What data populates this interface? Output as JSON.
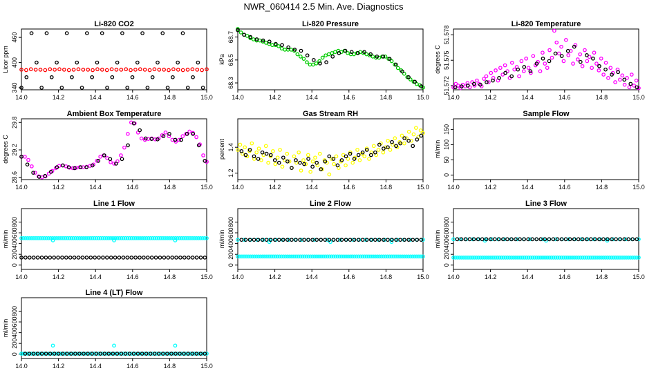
{
  "title": "NWR_060414  2.5 Min. Ave. Diagnostics",
  "colors": {
    "red": "#ff0000",
    "green": "#00cc00",
    "magenta": "#ff00ff",
    "yellow": "#ffff00",
    "cyan": "#00ffff",
    "black": "#000000"
  },
  "chart_data": [
    {
      "type": "scatter",
      "title": "Li-820 CO2",
      "ylabel": "Licor ppm",
      "xlim": [
        14.0,
        15.0
      ],
      "ylim": [
        335,
        480
      ],
      "x_ticks": [
        "14.0",
        "14.2",
        "14.4",
        "14.6",
        "14.8",
        "15.0"
      ],
      "y_ticks": [
        "340",
        "400",
        "460"
      ],
      "series": [
        {
          "name": "red",
          "color": "#ff0000",
          "x_start": 14.0,
          "x_end": 15.0,
          "values": [
            383,
            382,
            384,
            383,
            383,
            382,
            384,
            383,
            384,
            383,
            382,
            383,
            384,
            383,
            383,
            382,
            384,
            383,
            382,
            384,
            383,
            383,
            384,
            382,
            383,
            384,
            383,
            382,
            384,
            383,
            383,
            382,
            384,
            383,
            382,
            383,
            384,
            383,
            382,
            384
          ]
        },
        {
          "name": "black",
          "color": "#000000",
          "x_start": 14.0,
          "x_end": 14.98,
          "values": [
            340,
            365,
            470,
            400,
            340,
            470,
            365,
            400,
            340,
            470,
            365,
            400,
            340,
            470,
            365,
            400,
            470,
            340,
            365,
            400,
            470,
            340,
            365,
            400,
            470,
            340,
            365,
            400,
            470,
            340,
            365,
            400,
            470,
            340,
            365,
            400,
            340
          ]
        }
      ]
    },
    {
      "type": "scatter",
      "title": "Li-820 Pressure",
      "ylabel": "kPa",
      "xlim": [
        14.0,
        15.0
      ],
      "ylim": [
        68.24,
        68.77
      ],
      "x_ticks": [
        "14.0",
        "14.2",
        "14.4",
        "14.6",
        "14.8",
        "15.0"
      ],
      "y_ticks": [
        "68.3",
        "68.5",
        "68.7"
      ],
      "series": [
        {
          "name": "green",
          "color": "#00cc00",
          "x_start": 14.0,
          "x_end": 15.0,
          "values": [
            68.77,
            68.74,
            68.72,
            68.71,
            68.69,
            68.68,
            68.67,
            68.67,
            68.66,
            68.65,
            68.64,
            68.63,
            68.63,
            68.62,
            68.6,
            68.59,
            68.59,
            68.59,
            68.58,
            68.55,
            68.53,
            68.51,
            68.48,
            68.46,
            68.46,
            68.47,
            68.49,
            68.52,
            68.54,
            68.55,
            68.56,
            68.57,
            68.58,
            68.57,
            68.58,
            68.56,
            68.55,
            68.55,
            68.56,
            68.57,
            68.56,
            68.55,
            68.54,
            68.53,
            68.52,
            68.52,
            68.53,
            68.53,
            68.51,
            68.49,
            68.46,
            68.43,
            68.41,
            68.38,
            68.35,
            68.33,
            68.31,
            68.29,
            68.28,
            68.26
          ]
        },
        {
          "name": "black",
          "color": "#000000",
          "x_start": 14.0,
          "x_end": 14.99,
          "values": [
            68.76,
            68.72,
            68.7,
            68.68,
            68.67,
            68.66,
            68.64,
            68.63,
            68.61,
            68.59,
            68.58,
            68.54,
            68.5,
            68.47,
            68.48,
            68.53,
            68.56,
            68.58,
            68.57,
            68.56,
            68.57,
            68.55,
            68.53,
            68.53,
            68.51,
            68.46,
            68.4,
            68.35,
            68.31,
            68.27
          ]
        }
      ]
    },
    {
      "type": "scatter",
      "title": "Li-820 Temperature",
      "ylabel": "degrees C",
      "xlim": [
        14.0,
        15.0
      ],
      "ylim": [
        51.5715,
        51.5787
      ],
      "x_ticks": [
        "14.0",
        "14.2",
        "14.4",
        "14.6",
        "14.8",
        "15.0"
      ],
      "y_ticks": [
        "51.572",
        "51.575",
        "51.578"
      ],
      "series": [
        {
          "name": "magenta",
          "color": "#ff00ff",
          "x_start": 14.0,
          "x_end": 15.0,
          "values": [
            51.5718,
            51.5722,
            51.572,
            51.5717,
            51.5721,
            51.5719,
            51.5723,
            51.5718,
            51.5724,
            51.572,
            51.5726,
            51.5722,
            51.5719,
            51.5728,
            51.5731,
            51.5724,
            51.5735,
            51.5729,
            51.5738,
            51.5726,
            51.5741,
            51.5733,
            51.5744,
            51.5737,
            51.5729,
            51.5747,
            51.5739,
            51.5742,
            51.5731,
            51.5749,
            51.5737,
            51.5752,
            51.5741,
            51.5735,
            51.5755,
            51.5744,
            51.5748,
            51.5737,
            51.5759,
            51.5746,
            51.5741,
            51.5762,
            51.5753,
            51.5785,
            51.5771,
            51.5758,
            51.5766,
            51.5749,
            51.5774,
            51.5756,
            51.5761,
            51.5746,
            51.5768,
            51.5751,
            51.5757,
            51.5743,
            51.5762,
            51.5749,
            51.5754,
            51.5741,
            51.5759,
            51.5746,
            51.5738,
            51.5752,
            51.5733,
            51.5747,
            51.5729,
            51.5741,
            51.5735,
            51.5724,
            51.5739,
            51.5727,
            51.5732,
            51.5721,
            51.5729,
            51.5718,
            51.5733,
            51.572,
            51.5726,
            51.5717
          ]
        },
        {
          "name": "black",
          "color": "#000000",
          "x_start": 14.01,
          "x_end": 14.99,
          "values": [
            51.5718,
            51.5719,
            51.572,
            51.5722,
            51.5721,
            51.5724,
            51.5726,
            51.5729,
            51.5735,
            51.5731,
            51.5739,
            51.5742,
            51.5737,
            51.5746,
            51.5752,
            51.5749,
            51.5758,
            51.5755,
            51.5761,
            51.5766,
            51.5748,
            51.5756,
            51.5752,
            51.5743,
            51.5739,
            51.5733,
            51.5736,
            51.5727,
            51.5722,
            51.5718
          ]
        }
      ]
    },
    {
      "type": "scatter",
      "title": "Ambient Box Temperature",
      "ylabel": "degrees C",
      "xlim": [
        14.0,
        15.0
      ],
      "ylim": [
        28.55,
        29.88
      ],
      "x_ticks": [
        "14.0",
        "14.2",
        "14.4",
        "14.6",
        "14.8",
        "15.0"
      ],
      "y_ticks": [
        "28.6",
        "29.2",
        "29.8"
      ],
      "series": [
        {
          "name": "magenta",
          "color": "#ff00ff",
          "x_start": 14.0,
          "x_end": 15.0,
          "values": [
            29.05,
            29.05,
            28.98,
            28.84,
            28.7,
            28.62,
            28.6,
            28.62,
            28.68,
            28.74,
            28.8,
            28.85,
            28.86,
            28.84,
            28.81,
            28.8,
            28.81,
            28.82,
            28.82,
            28.83,
            28.85,
            28.88,
            28.96,
            29.05,
            29.08,
            29.02,
            28.93,
            28.9,
            28.95,
            29.08,
            29.25,
            29.55,
            29.8,
            29.78,
            29.58,
            29.45,
            29.42,
            29.44,
            29.45,
            29.43,
            29.45,
            29.52,
            29.58,
            29.5,
            29.42,
            29.38,
            29.42,
            29.5,
            29.55,
            29.6,
            29.57,
            29.48,
            29.32,
            29.08,
            28.94
          ]
        },
        {
          "name": "black",
          "color": "#000000",
          "x_start": 14.0,
          "x_end": 14.99,
          "values": [
            29.05,
            28.88,
            28.7,
            28.61,
            28.63,
            28.72,
            28.82,
            28.86,
            28.82,
            28.8,
            28.82,
            28.82,
            28.86,
            28.96,
            29.08,
            29.0,
            28.9,
            29.0,
            29.3,
            29.78,
            29.63,
            29.45,
            29.44,
            29.43,
            29.5,
            29.55,
            29.42,
            29.42,
            29.55,
            29.55,
            29.3,
            28.96
          ]
        }
      ]
    },
    {
      "type": "scatter",
      "title": "Gas Stream RH",
      "ylabel": "percent",
      "xlim": [
        14.0,
        15.0
      ],
      "ylim": [
        1.15,
        1.62
      ],
      "x_ticks": [
        "14.0",
        "14.2",
        "14.4",
        "14.6",
        "14.8",
        "15.0"
      ],
      "y_ticks": [
        "1.2",
        "1.4"
      ],
      "series": [
        {
          "name": "yellow",
          "color": "#ffff00",
          "x_start": 14.0,
          "x_end": 15.0,
          "values": [
            1.38,
            1.42,
            1.35,
            1.4,
            1.33,
            1.37,
            1.43,
            1.31,
            1.36,
            1.39,
            1.3,
            1.34,
            1.41,
            1.28,
            1.33,
            1.37,
            1.27,
            1.32,
            1.38,
            1.25,
            1.3,
            1.35,
            1.29,
            1.24,
            1.33,
            1.28,
            1.36,
            1.22,
            1.3,
            1.27,
            1.34,
            1.21,
            1.29,
            1.32,
            1.26,
            1.35,
            1.23,
            1.3,
            1.28,
            1.19,
            1.31,
            1.27,
            1.33,
            1.24,
            1.29,
            1.34,
            1.26,
            1.31,
            1.36,
            1.28,
            1.32,
            1.38,
            1.3,
            1.35,
            1.33,
            1.39,
            1.31,
            1.36,
            1.41,
            1.34,
            1.38,
            1.43,
            1.36,
            1.4,
            1.45,
            1.38,
            1.42,
            1.47,
            1.4,
            1.44,
            1.49,
            1.43,
            1.47,
            1.52,
            1.45,
            1.5,
            1.55,
            1.48,
            1.53,
            1.51
          ]
        },
        {
          "name": "black",
          "color": "#000000",
          "x_start": 14.02,
          "x_end": 14.99,
          "values": [
            1.37,
            1.34,
            1.38,
            1.33,
            1.31,
            1.36,
            1.35,
            1.34,
            1.3,
            1.28,
            1.32,
            1.29,
            1.24,
            1.3,
            1.28,
            1.27,
            1.31,
            1.25,
            1.28,
            1.23,
            1.29,
            1.33,
            1.31,
            1.26,
            1.3,
            1.33,
            1.35,
            1.31,
            1.34,
            1.36,
            1.38,
            1.34,
            1.36,
            1.42,
            1.39,
            1.4,
            1.44,
            1.41,
            1.43,
            1.47,
            1.45,
            1.41,
            1.46,
            1.49
          ]
        }
      ]
    },
    {
      "type": "scatter",
      "title": "Sample Flow",
      "ylabel": "ml/min",
      "xlim": [
        14.0,
        15.0
      ],
      "ylim": [
        -15,
        185
      ],
      "x_ticks": [
        "14.0",
        "14.2",
        "14.4",
        "14.6",
        "14.8",
        "15.0"
      ],
      "y_ticks": [
        "0",
        "50",
        "100",
        "150"
      ],
      "series": []
    },
    {
      "type": "scatter",
      "title": "Line 1 Flow",
      "ylabel": "ml/min",
      "xlim": [
        14.0,
        15.0
      ],
      "ylim": [
        -80,
        1050
      ],
      "x_ticks": [
        "14.0",
        "14.2",
        "14.4",
        "14.6",
        "14.8",
        "15.0"
      ],
      "y_ticks": [
        "0",
        "200",
        "400",
        "600",
        "800"
      ],
      "series": [
        {
          "name": "cyan-high",
          "color": "#00ffff",
          "x_start": 14.0,
          "x_end": 15.0,
          "constant": 500,
          "count": 90
        },
        {
          "name": "cyan-dips",
          "color": "#00ffff",
          "x": [
            14.17,
            14.5,
            14.83
          ],
          "values": [
            460,
            460,
            460
          ]
        },
        {
          "name": "black",
          "color": "#000000",
          "x_start": 14.0,
          "x_end": 14.99,
          "constant": 140,
          "count": 46
        }
      ]
    },
    {
      "type": "scatter",
      "title": "Line 2 Flow",
      "ylabel": "ml/min",
      "xlim": [
        14.0,
        15.0
      ],
      "ylim": [
        -80,
        1050
      ],
      "x_ticks": [
        "14.0",
        "14.2",
        "14.4",
        "14.6",
        "14.8",
        "15.0"
      ],
      "y_ticks": [
        "0",
        "200",
        "400",
        "600",
        "800"
      ],
      "series": [
        {
          "name": "cyan-low",
          "color": "#00ffff",
          "x_start": 14.0,
          "x_end": 15.0,
          "constant": 160,
          "count": 90
        },
        {
          "name": "cyan-high",
          "color": "#00ffff",
          "x_start": 14.0,
          "x_end": 15.0,
          "constant": 470,
          "count": 30
        },
        {
          "name": "cyan-dips",
          "color": "#00ffff",
          "x": [
            14.17,
            14.5,
            14.83
          ],
          "values": [
            430,
            430,
            430
          ]
        },
        {
          "name": "black",
          "color": "#000000",
          "x_start": 14.02,
          "x_end": 14.99,
          "constant": 470,
          "count": 44
        }
      ]
    },
    {
      "type": "scatter",
      "title": "Line 3 Flow",
      "ylabel": "ml/min",
      "xlim": [
        14.0,
        15.0
      ],
      "ylim": [
        -80,
        1050
      ],
      "x_ticks": [
        "14.0",
        "14.2",
        "14.4",
        "14.6",
        "14.8",
        "15.0"
      ],
      "y_ticks": [
        "0",
        "200",
        "400",
        "600",
        "800"
      ],
      "series": [
        {
          "name": "cyan-low",
          "color": "#00ffff",
          "x_start": 14.0,
          "x_end": 15.0,
          "constant": 140,
          "count": 90
        },
        {
          "name": "cyan-high",
          "color": "#00ffff",
          "x_start": 14.0,
          "x_end": 15.0,
          "constant": 480,
          "count": 30
        },
        {
          "name": "cyan-dips",
          "color": "#00ffff",
          "x": [
            14.17,
            14.5,
            14.83
          ],
          "values": [
            455,
            455,
            455
          ]
        },
        {
          "name": "black",
          "color": "#000000",
          "x_start": 14.02,
          "x_end": 14.99,
          "constant": 480,
          "count": 44
        }
      ]
    },
    {
      "type": "scatter",
      "title": "Line 4 (LT) Flow",
      "ylabel": "ml/min",
      "xlim": [
        14.0,
        15.0
      ],
      "ylim": [
        -80,
        1050
      ],
      "x_ticks": [
        "14.0",
        "14.2",
        "14.4",
        "14.6",
        "14.8",
        "15.0"
      ],
      "y_ticks": [
        "0",
        "200",
        "400",
        "600",
        "800"
      ],
      "series": [
        {
          "name": "cyan-low",
          "color": "#00ffff",
          "x_start": 14.0,
          "x_end": 15.0,
          "constant": 10,
          "count": 90
        },
        {
          "name": "cyan-spikes",
          "color": "#00ffff",
          "x": [
            14.17,
            14.5,
            14.83
          ],
          "values": [
            160,
            160,
            160
          ]
        },
        {
          "name": "black",
          "color": "#000000",
          "x_start": 14.02,
          "x_end": 14.99,
          "constant": 10,
          "count": 44
        }
      ]
    }
  ]
}
